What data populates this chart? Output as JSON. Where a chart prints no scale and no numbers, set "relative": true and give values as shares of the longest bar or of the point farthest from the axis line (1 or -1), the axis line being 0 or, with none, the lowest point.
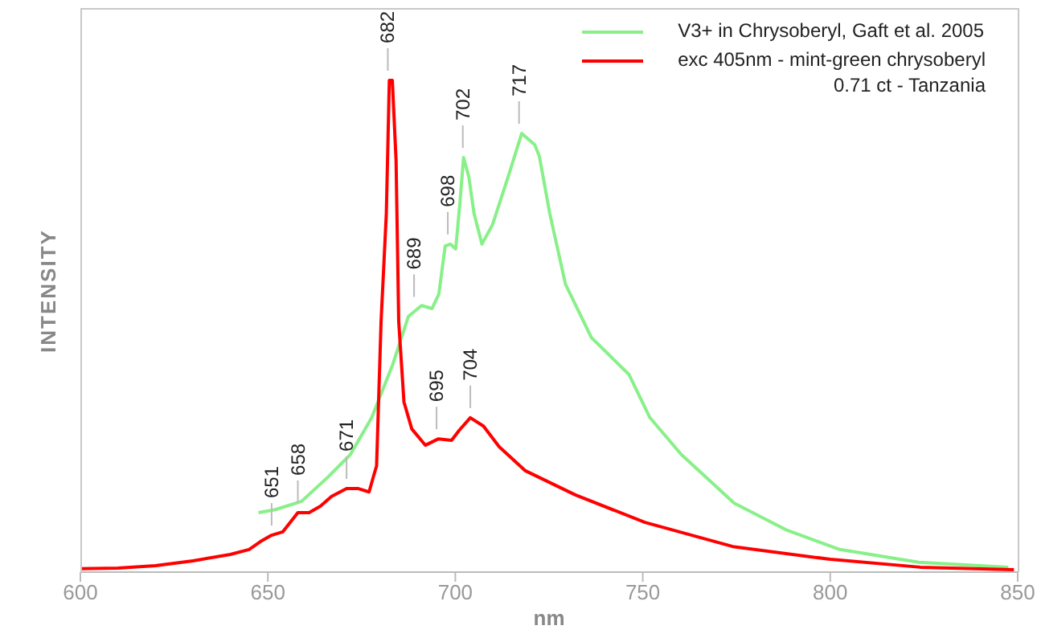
{
  "chart_data": {
    "type": "line",
    "relative": true,
    "xlabel": "nm",
    "ylabel": "INTENSITY",
    "xlim": [
      600,
      850
    ],
    "xticks": [
      600,
      650,
      700,
      750,
      800,
      850
    ],
    "grid": false,
    "legend": "top right",
    "marker": "none",
    "line_style": "solid",
    "series": [
      {
        "name": "V3+ in Chrysoberyl, Gaft et al. 2005",
        "color": "#88f088",
        "x": [
          647.5,
          652,
          659,
          666,
          672,
          677.7,
          683.3,
          687.5,
          691,
          693.8,
          695.6,
          697.3,
          698.7,
          700.1,
          701.2,
          702.2,
          703.6,
          705,
          707.1,
          709.9,
          714.1,
          717.7,
          721.2,
          722.4,
          725.2,
          729.4,
          736.3,
          746.3,
          751.9,
          760.3,
          774.4,
          788.5,
          802.5,
          823.6,
          847.5
        ],
        "values": [
          0.121,
          0.127,
          0.144,
          0.193,
          0.239,
          0.314,
          0.422,
          0.52,
          0.542,
          0.536,
          0.565,
          0.663,
          0.667,
          0.657,
          0.748,
          0.843,
          0.804,
          0.729,
          0.667,
          0.706,
          0.804,
          0.892,
          0.869,
          0.846,
          0.729,
          0.585,
          0.477,
          0.402,
          0.314,
          0.239,
          0.14,
          0.085,
          0.046,
          0.02,
          0.01
        ]
      },
      {
        "name": "exc 405nm - mint-green chrysoberyl\n0.71 ct - Tanzania",
        "color": "#ff0000",
        "x": [
          600,
          610,
          620,
          630,
          640,
          645,
          648,
          651,
          654,
          657,
          658,
          661,
          664,
          667,
          671,
          674,
          677,
          678,
          679,
          680.2,
          681.6,
          682.4,
          683.2,
          684.2,
          684.9,
          686.3,
          688.4,
          692,
          695.5,
          699,
          701,
          704,
          707.5,
          711.7,
          718.7,
          732,
          750.6,
          774,
          800,
          824,
          849
        ],
        "values": [
          0.007,
          0.008,
          0.013,
          0.023,
          0.036,
          0.046,
          0.062,
          0.075,
          0.082,
          0.111,
          0.121,
          0.121,
          0.134,
          0.154,
          0.17,
          0.17,
          0.163,
          0.19,
          0.216,
          0.51,
          0.729,
          1.0,
          1.0,
          0.837,
          0.51,
          0.346,
          0.291,
          0.258,
          0.271,
          0.268,
          0.288,
          0.314,
          0.297,
          0.255,
          0.206,
          0.157,
          0.101,
          0.052,
          0.026,
          0.01,
          0.005
        ]
      }
    ],
    "annotations": [
      {
        "text": "651",
        "x": 651,
        "y": 0.075
      },
      {
        "text": "658",
        "x": 658,
        "y": 0.121
      },
      {
        "text": "671",
        "x": 671,
        "y": 0.17
      },
      {
        "text": "682",
        "x": 682,
        "y": 1.0
      },
      {
        "text": "689",
        "x": 689,
        "y": 0.54
      },
      {
        "text": "695",
        "x": 695,
        "y": 0.271
      },
      {
        "text": "698",
        "x": 698,
        "y": 0.667
      },
      {
        "text": "702",
        "x": 702,
        "y": 0.843
      },
      {
        "text": "704",
        "x": 704,
        "y": 0.314
      },
      {
        "text": "717",
        "x": 717,
        "y": 0.892
      }
    ]
  }
}
